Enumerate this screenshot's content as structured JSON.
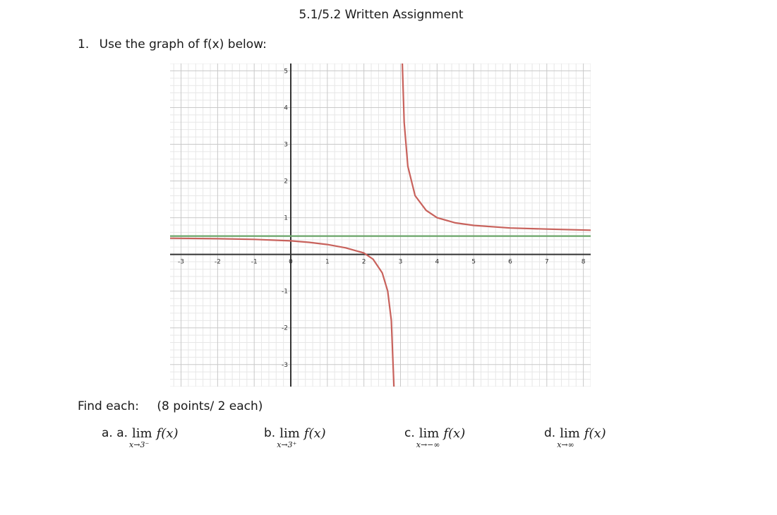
{
  "header": {
    "title": "5.1/5.2 Written Assignment"
  },
  "question": {
    "number": "1.",
    "prompt": "Use the graph of f(x) below:"
  },
  "find": {
    "label": "Find each:",
    "points": "(8 points/ 2 each)"
  },
  "limits": [
    {
      "tag": "a.   a.",
      "word": "lim",
      "sub": "x→3⁻",
      "func": "f(x)"
    },
    {
      "tag": "b.",
      "word": "lim",
      "sub": "x→3⁺",
      "func": "f(x)"
    },
    {
      "tag": "c.",
      "word": "lim",
      "sub": "x→−∞",
      "func": "f(x)"
    },
    {
      "tag": "d.",
      "word": "lim",
      "sub": "x→∞",
      "func": "f(x)"
    }
  ],
  "chart_data": {
    "type": "line",
    "xlim": [
      -3.3,
      8.2
    ],
    "ylim": [
      -3.6,
      5.2
    ],
    "x_ticks": [
      -3,
      -2,
      -1,
      0,
      1,
      2,
      3,
      4,
      5,
      6,
      7,
      8
    ],
    "y_ticks": [
      -3,
      -2,
      -1,
      1,
      2,
      3,
      4,
      5
    ],
    "grid": true,
    "vertical_asymptote_x": 3,
    "series": [
      {
        "color": "#c8625c",
        "function_points_left_branch": [
          [
            -3.3,
            0.44
          ],
          [
            -2,
            0.43
          ],
          [
            -1,
            0.41
          ],
          [
            0,
            0.37
          ],
          [
            0.5,
            0.33
          ],
          [
            1,
            0.27
          ],
          [
            1.5,
            0.18
          ],
          [
            2,
            0.04
          ],
          [
            2.25,
            -0.13
          ],
          [
            2.5,
            -0.5
          ],
          [
            2.65,
            -1.0
          ],
          [
            2.75,
            -1.8
          ],
          [
            2.82,
            -3.6
          ]
        ],
        "function_points_right_branch": [
          [
            3.05,
            5.2
          ],
          [
            3.1,
            3.6
          ],
          [
            3.2,
            2.4
          ],
          [
            3.4,
            1.6
          ],
          [
            3.7,
            1.2
          ],
          [
            4,
            1.0
          ],
          [
            4.5,
            0.86
          ],
          [
            5,
            0.79
          ],
          [
            6,
            0.72
          ],
          [
            7,
            0.69
          ],
          [
            8.2,
            0.66
          ]
        ]
      },
      {
        "color": "#6aa568",
        "horizontal_line_y": 0.5
      }
    ]
  }
}
